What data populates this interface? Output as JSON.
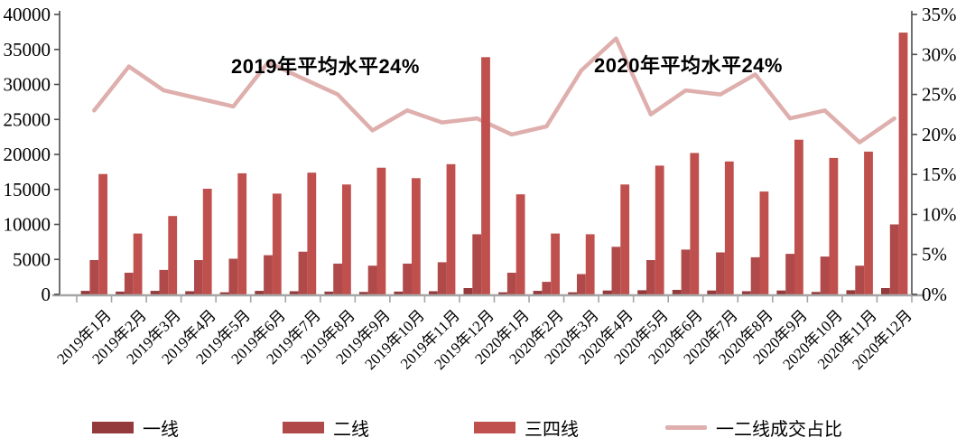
{
  "chart_data": {
    "type": "combo-bar-line",
    "title": "",
    "categories": [
      "2019年1月",
      "2019年2月",
      "2019年3月",
      "2019年4月",
      "2019年5月",
      "2019年6月",
      "2019年7月",
      "2019年8月",
      "2019年9月",
      "2019年10月",
      "2019年11月",
      "2019年12月",
      "2020年1月",
      "2020年2月",
      "2020年3月",
      "2020年4月",
      "2020年5月",
      "2020年6月",
      "2020年7月",
      "2020年8月",
      "2020年9月",
      "2020年10月",
      "2020年11月",
      "2020年12月"
    ],
    "bar_series": [
      {
        "name": "一线",
        "color": "#94393c",
        "values": [
          500,
          400,
          500,
          450,
          300,
          500,
          450,
          400,
          350,
          400,
          450,
          900,
          300,
          500,
          300,
          550,
          600,
          650,
          550,
          450,
          550,
          350,
          600,
          900
        ]
      },
      {
        "name": "二线",
        "color": "#b04a4a",
        "values": [
          4900,
          3100,
          3500,
          4900,
          5100,
          5600,
          6100,
          4400,
          4100,
          4400,
          4600,
          8600,
          3100,
          1800,
          2900,
          6800,
          4900,
          6400,
          6000,
          5300,
          5800,
          5400,
          4100,
          10000
        ]
      },
      {
        "name": "三四线",
        "color": "#c0504d",
        "values": [
          17200,
          8700,
          11200,
          15100,
          17300,
          14400,
          17400,
          15700,
          18100,
          16600,
          18600,
          33900,
          14300,
          8700,
          8600,
          15700,
          18400,
          20200,
          19000,
          14700,
          22100,
          19500,
          20400,
          37400
        ]
      }
    ],
    "line_series": {
      "name": "一二线成交占比",
      "color": "#deafac",
      "axis": "right",
      "values_pct": [
        23,
        28.5,
        25.5,
        24.5,
        23.5,
        29,
        27,
        25,
        20.5,
        23,
        21.5,
        22,
        20,
        21,
        28,
        32,
        22.5,
        25.5,
        25,
        27.5,
        22,
        23,
        19,
        22
      ]
    },
    "left_axis": {
      "min": 0,
      "max": 40000,
      "step": 5000,
      "tick_labels": [
        "0",
        "5000",
        "10000",
        "15000",
        "20000",
        "25000",
        "30000",
        "35000",
        "40000"
      ]
    },
    "right_axis": {
      "min": 0,
      "max": 35,
      "step": 5,
      "unit": "%",
      "tick_labels": [
        "0%",
        "5%",
        "10%",
        "15%",
        "20%",
        "25%",
        "30%",
        "35%"
      ]
    },
    "annotations": [
      {
        "text": "2019年平均水平24%"
      },
      {
        "text": "2020年平均水平24%"
      }
    ],
    "legend": {
      "items": [
        "一线",
        "二线",
        "三四线",
        "一二线成交占比"
      ]
    },
    "layout_hints": {
      "grid": "off",
      "legend_position": "bottom",
      "x_label_rotation": -45
    }
  },
  "colors": {
    "axis_dark": "#4d4d4d",
    "axis_light": "#a6a6a6",
    "text": "#000000",
    "background": "#ffffff"
  }
}
